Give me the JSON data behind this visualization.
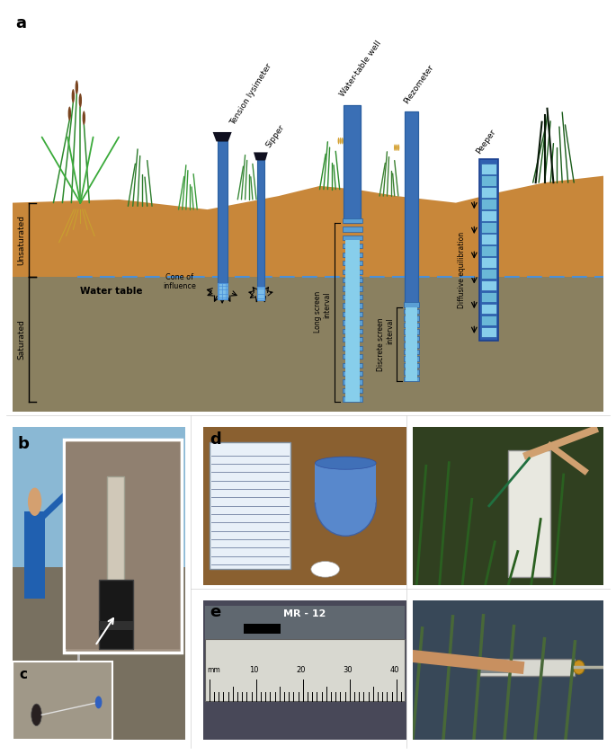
{
  "panel_label_fontsize": 14,
  "panel_label_fontweight": "bold",
  "background_color": "#ffffff",
  "sky_color": "#ffffff",
  "unsaturated_soil_color": "#c8873a",
  "saturated_soil_color": "#8a8060",
  "water_table_color": "#4a90d9",
  "unsaturated_label": "Unsaturated",
  "saturated_label": "Saturated",
  "water_table_label": "Water table",
  "tube_color_dark": "#3a6fb5",
  "tube_color_mid": "#5a9fd4",
  "tube_color_light": "#87ceeb",
  "screen_color": "#7bbde8",
  "label_tension_lysimeter": "Tension lysimeter",
  "label_sipper": "Sipper",
  "label_water_table_well": "Water-table well",
  "label_piezometer": "Piezometer",
  "label_peeper": "Peeper",
  "label_cone_of_influence": "Cone of\ninfluence",
  "label_long_screen": "Long screen\ninterval",
  "label_discrete_screen": "Discrete screen\ninterval",
  "label_diffusive_eq": "Diffusive equilibration"
}
